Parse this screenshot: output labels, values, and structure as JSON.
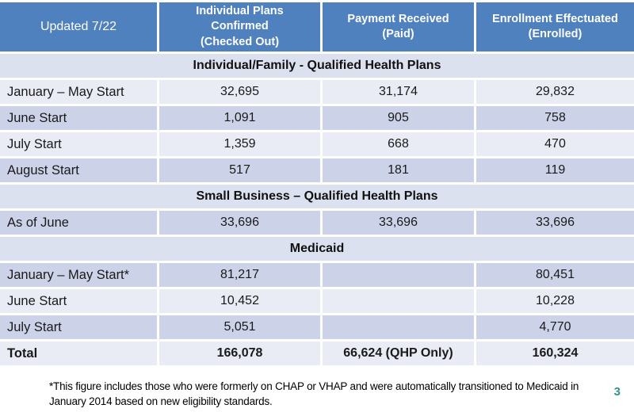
{
  "slide": {
    "footnote": "*This figure includes those who were formerly on CHAP or VHAP and were automatically transitioned to Medicaid in January 2014 based on new eligibility standards.",
    "page_number": "3"
  },
  "colors": {
    "header_blue": "#4E81BD",
    "band_light": "#E9EBF5",
    "band_dark": "#CCD3E8",
    "band_section": "#DCE1F0",
    "page_number_teal": "#35918A"
  },
  "table": {
    "header": {
      "updated": "Updated 7/22",
      "confirmed": "Individual Plans\nConfirmed\n(Checked Out)",
      "paid": "Payment Received\n(Paid)",
      "enrolled": "Enrollment Effectuated\n(Enrolled)"
    },
    "rows": [
      {
        "type": "section",
        "label": "Individual/Family - Qualified Health Plans"
      },
      {
        "type": "data",
        "label": "January – May Start",
        "confirmed": "32,695",
        "paid": "31,174",
        "enrolled": "29,832"
      },
      {
        "type": "data",
        "label": "June Start",
        "confirmed": "1,091",
        "paid": "905",
        "enrolled": "758"
      },
      {
        "type": "data",
        "label": "July Start",
        "confirmed": "1,359",
        "paid": "668",
        "enrolled": "470"
      },
      {
        "type": "data",
        "label": "August Start",
        "confirmed": "517",
        "paid": "181",
        "enrolled": "119"
      },
      {
        "type": "section",
        "label": "Small Business – Qualified Health Plans"
      },
      {
        "type": "data",
        "label": "As of June",
        "confirmed": "33,696",
        "paid": "33,696",
        "enrolled": "33,696"
      },
      {
        "type": "section",
        "label": "Medicaid"
      },
      {
        "type": "data",
        "label": "January – May Start*",
        "confirmed": "81,217",
        "paid": "",
        "enrolled": "80,451"
      },
      {
        "type": "data",
        "label": "June Start",
        "confirmed": "10,452",
        "paid": "",
        "enrolled": "10,228"
      },
      {
        "type": "data",
        "label": "July Start",
        "confirmed": "5,051",
        "paid": "",
        "enrolled": "4,770"
      },
      {
        "type": "data",
        "label": "Total",
        "confirmed": "166,078",
        "paid": "66,624 (QHP Only)",
        "enrolled": "160,324"
      }
    ]
  }
}
